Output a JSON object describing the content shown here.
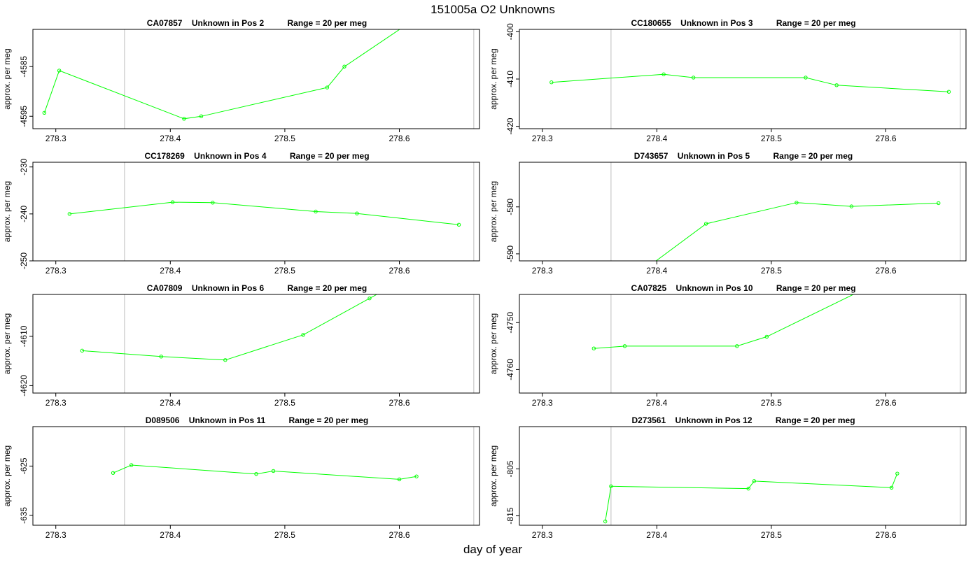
{
  "figure": {
    "title": "151005a  O2 Unknowns",
    "xlabel": "day of year"
  },
  "colors": {
    "series": "#00ff00",
    "ref_line": "#c8c8c8",
    "axes": "#000000"
  },
  "chart_data": [
    {
      "type": "line",
      "title": "CA07857    Unknown in Pos 2          Range = 20 per meg",
      "ylabel": "approx. per meg",
      "xlim": [
        278.28,
        278.67
      ],
      "ylim": [
        -4597.5,
        -4577.5
      ],
      "xticks": [
        278.3,
        278.4,
        278.5,
        278.6
      ],
      "yticks": [
        -4585,
        -4595
      ],
      "ref_lines": [
        278.36,
        278.665
      ],
      "x": [
        278.29,
        278.303,
        278.412,
        278.427,
        278.537,
        278.552,
        278.61
      ],
      "y": [
        -4594.3,
        -4585.8,
        -4595.5,
        -4595.0,
        -4589.2,
        -4585.0,
        -4576.0
      ]
    },
    {
      "type": "line",
      "title": "CC180655    Unknown in Pos 3          Range = 20 per meg",
      "ylabel": "approx. per meg",
      "xlim": [
        278.28,
        278.67
      ],
      "ylim": [
        -420.5,
        -399.5
      ],
      "xticks": [
        278.3,
        278.4,
        278.5,
        278.6
      ],
      "yticks": [
        -400,
        -410,
        -420
      ],
      "ref_lines": [
        278.36,
        278.665
      ],
      "x": [
        278.308,
        278.406,
        278.432,
        278.53,
        278.557,
        278.655
      ],
      "y": [
        -410.7,
        -409.0,
        -409.7,
        -409.7,
        -411.3,
        -412.7
      ]
    },
    {
      "type": "line",
      "title": "CC178269    Unknown in Pos 4          Range = 20 per meg",
      "ylabel": "approx. per meg",
      "xlim": [
        278.28,
        278.67
      ],
      "ylim": [
        -250.0,
        -229.0
      ],
      "xticks": [
        278.3,
        278.4,
        278.5,
        278.6
      ],
      "yticks": [
        -230,
        -240,
        -250
      ],
      "ref_lines": [
        278.36,
        278.665
      ],
      "x": [
        278.312,
        278.402,
        278.437,
        278.527,
        278.563,
        278.652
      ],
      "y": [
        -240.0,
        -237.5,
        -237.6,
        -239.5,
        -239.9,
        -242.3
      ]
    },
    {
      "type": "line",
      "title": "D743657    Unknown in Pos 5          Range = 20 per meg",
      "ylabel": "approx. per meg",
      "xlim": [
        278.28,
        278.67
      ],
      "ylim": [
        -591.5,
        -570.5
      ],
      "xticks": [
        278.3,
        278.4,
        278.5,
        278.6
      ],
      "yticks": [
        -580,
        -590
      ],
      "ref_lines": [
        278.36,
        278.665
      ],
      "x": [
        278.38,
        278.443,
        278.522,
        278.57,
        278.646
      ],
      "y": [
        -595.0,
        -583.6,
        -579.1,
        -579.9,
        -579.2
      ]
    },
    {
      "type": "line",
      "title": "CA07809    Unknown in Pos 6          Range = 20 per meg",
      "ylabel": "approx. per meg",
      "xlim": [
        278.28,
        278.67
      ],
      "ylim": [
        -4621.5,
        -4601.5
      ],
      "xticks": [
        278.3,
        278.4,
        278.5,
        278.6
      ],
      "yticks": [
        -4610,
        -4620
      ],
      "ref_lines": [
        278.36,
        278.665
      ],
      "x": [
        278.323,
        278.392,
        278.448,
        278.516,
        278.574,
        278.6
      ],
      "y": [
        -4612.9,
        -4614.1,
        -4614.8,
        -4609.7,
        -4602.3,
        -4599.0
      ]
    },
    {
      "type": "line",
      "title": "CA07825    Unknown in Pos 10          Range = 20 per meg",
      "ylabel": "approx. per meg",
      "xlim": [
        278.28,
        278.67
      ],
      "ylim": [
        -4765.0,
        -4744.0
      ],
      "xticks": [
        278.3,
        278.4,
        278.5,
        278.6
      ],
      "yticks": [
        -4750,
        -4760
      ],
      "ref_lines": [
        278.36,
        278.665
      ],
      "x": [
        278.345,
        278.372,
        278.47,
        278.496,
        278.58
      ],
      "y": [
        -4755.5,
        -4755.0,
        -4755.0,
        -4753.0,
        -4743.0
      ]
    },
    {
      "type": "line",
      "title": "D089506    Unknown in Pos 11          Range = 20 per meg",
      "ylabel": "approx. per meg",
      "xlim": [
        278.28,
        278.67
      ],
      "ylim": [
        -637.0,
        -617.0
      ],
      "xticks": [
        278.3,
        278.4,
        278.5,
        278.6
      ],
      "yticks": [
        -625,
        -635
      ],
      "ref_lines": [
        278.36,
        278.665
      ],
      "x": [
        278.35,
        278.366,
        278.475,
        278.49,
        278.6,
        278.615
      ],
      "y": [
        -626.4,
        -624.8,
        -626.6,
        -626.0,
        -627.7,
        -627.1
      ]
    },
    {
      "type": "line",
      "title": "D273561    Unknown in Pos 12          Range = 20 per meg",
      "ylabel": "approx. per meg",
      "xlim": [
        278.28,
        278.67
      ],
      "ylim": [
        -817.0,
        -796.0
      ],
      "xticks": [
        278.3,
        278.4,
        278.5,
        278.6
      ],
      "yticks": [
        -805,
        -815
      ],
      "ref_lines": [
        278.36,
        278.665
      ],
      "x": [
        278.355,
        278.36,
        278.48,
        278.485,
        278.605,
        278.61
      ],
      "y": [
        -816.2,
        -808.7,
        -809.2,
        -807.6,
        -809.0,
        -806.0
      ]
    }
  ]
}
